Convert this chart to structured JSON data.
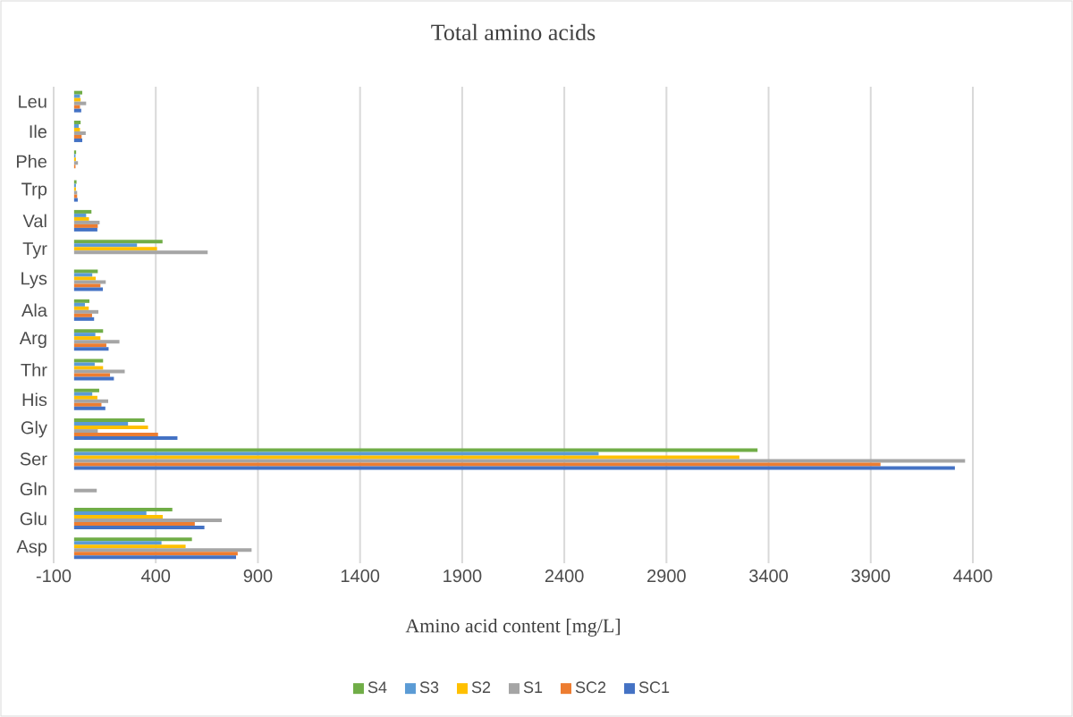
{
  "chart_data": {
    "type": "bar",
    "orientation": "horizontal",
    "title": "Total amino acids",
    "xlabel": "Amino acid content [mg/L]",
    "categories": [
      "Leu",
      "Ile",
      "Phe",
      "Trp",
      "Val",
      "Tyr",
      "Lys",
      "Ala",
      "Arg",
      "Thr",
      "His",
      "Gly",
      "Ser",
      "Gln",
      "Glu",
      "Asp"
    ],
    "series": [
      {
        "name": "S4",
        "color": "#70ad47",
        "values": [
          40,
          32,
          10,
          12,
          85,
          433,
          116,
          75,
          142,
          142,
          123,
          345,
          3346,
          null,
          481,
          577
        ]
      },
      {
        "name": "S3",
        "color": "#5b9bd5",
        "values": [
          29,
          23,
          7,
          9,
          59,
          308,
          89,
          53,
          104,
          101,
          89,
          264,
          2568,
          null,
          354,
          428
        ]
      },
      {
        "name": "S2",
        "color": "#ffc000",
        "values": [
          32,
          29,
          9,
          9,
          73,
          406,
          106,
          72,
          129,
          142,
          114,
          362,
          3257,
          null,
          434,
          546
        ]
      },
      {
        "name": "S1",
        "color": "#a5a5a5",
        "values": [
          59,
          57,
          19,
          15,
          125,
          654,
          155,
          119,
          222,
          248,
          167,
          116,
          4362,
          111,
          723,
          869
        ]
      },
      {
        "name": "SC2",
        "color": "#ed7d31",
        "values": [
          29,
          37,
          7,
          15,
          116,
          null,
          129,
          88,
          158,
          176,
          134,
          411,
          3948,
          null,
          591,
          801
        ]
      },
      {
        "name": "SC1",
        "color": "#4472c4",
        "values": [
          35,
          40,
          null,
          18,
          114,
          null,
          141,
          98,
          169,
          195,
          153,
          506,
          4312,
          null,
          638,
          793
        ]
      }
    ],
    "xlim": [
      -100,
      4400
    ],
    "xticks": [
      -100,
      400,
      900,
      1400,
      1900,
      2400,
      2900,
      3400,
      3900,
      4400
    ],
    "grid": "x",
    "legend": "bottom"
  }
}
